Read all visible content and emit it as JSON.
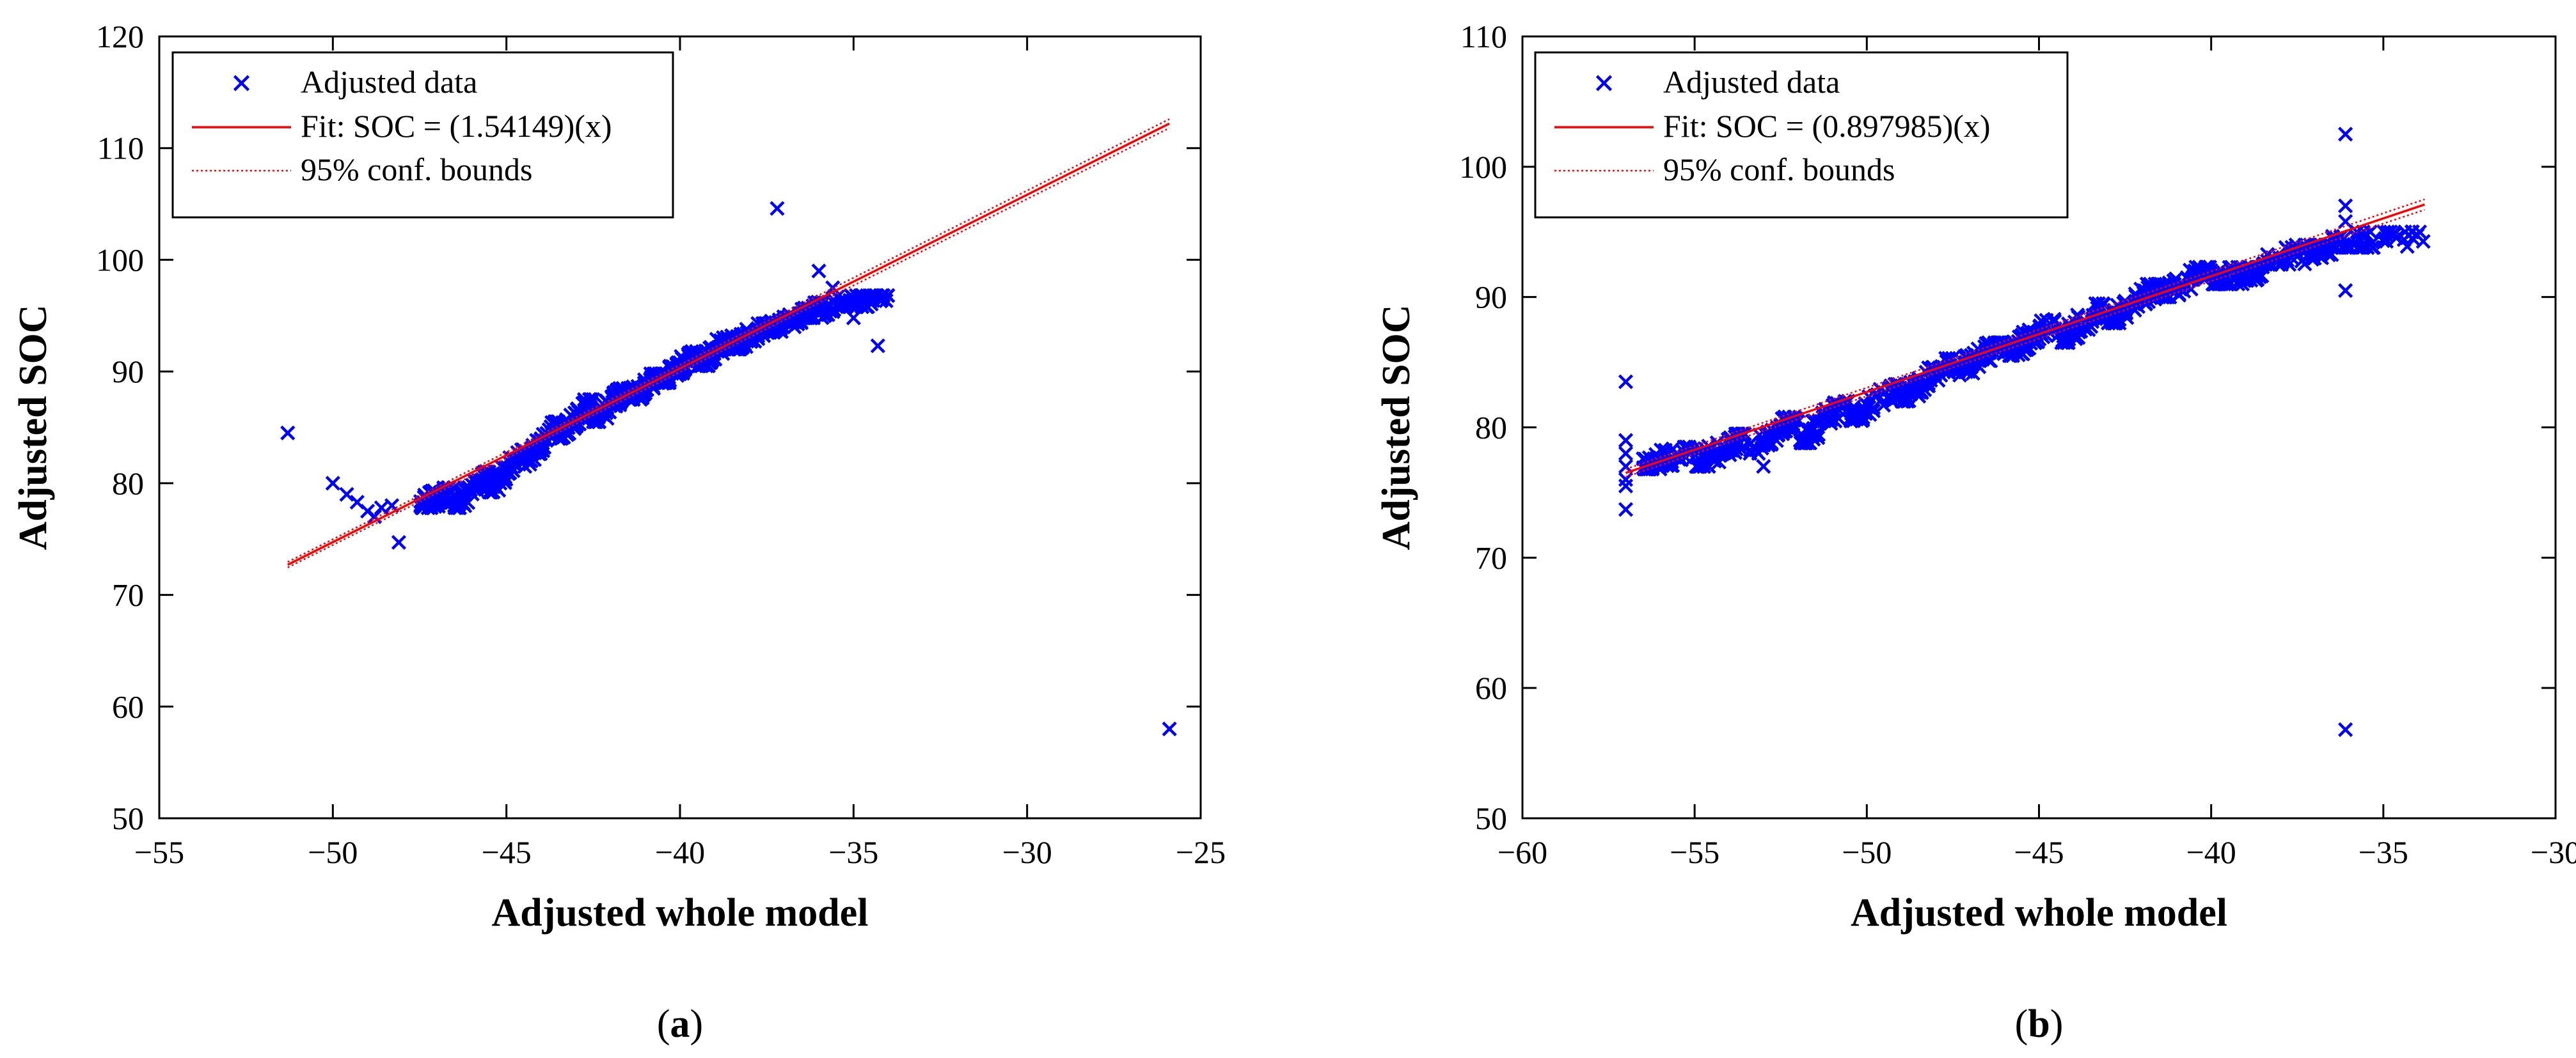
{
  "chart_data": [
    {
      "type": "scatter",
      "panel_label": "a",
      "xlabel": "Adjusted whole model",
      "ylabel": "Adjusted SOC",
      "xlim": [
        -55,
        -25
      ],
      "ylim": [
        50,
        120
      ],
      "xticks": [
        -55,
        -50,
        -45,
        -40,
        -35,
        -30,
        -25
      ],
      "yticks": [
        50,
        60,
        70,
        80,
        90,
        100,
        110,
        120
      ],
      "xtick_labels": [
        "−55",
        "−50",
        "−45",
        "−40",
        "−35",
        "−30",
        "−25"
      ],
      "ytick_labels": [
        "50",
        "60",
        "70",
        "80",
        "90",
        "100",
        "110",
        "120"
      ],
      "legend_location": "top-left",
      "legend": [
        "Adjusted data",
        "Fit: SOC = (1.54149)(x)",
        "95% conf. bounds"
      ],
      "colors": {
        "data": "#0000ff",
        "fit": "#ff0000",
        "bounds": "#ff0000",
        "axis": "#000000"
      },
      "fit_line": {
        "x": [
          -51.3,
          -25.9
        ],
        "y": [
          72.7,
          112.2
        ]
      },
      "conf_band": {
        "x": [
          -51.3,
          -25.9
        ],
        "lower": [
          72.45,
          111.8
        ],
        "upper": [
          72.95,
          112.6
        ]
      },
      "outliers": [
        {
          "x": -51.3,
          "y": 84.5
        },
        {
          "x": -50.0,
          "y": 80.0
        },
        {
          "x": -49.6,
          "y": 79.0
        },
        {
          "x": -49.3,
          "y": 78.3
        },
        {
          "x": -49.0,
          "y": 77.5
        },
        {
          "x": -48.8,
          "y": 77.0
        },
        {
          "x": -48.6,
          "y": 77.8
        },
        {
          "x": -48.3,
          "y": 78.0
        },
        {
          "x": -48.1,
          "y": 74.7
        },
        {
          "x": -37.2,
          "y": 104.6
        },
        {
          "x": -36.0,
          "y": 99.0
        },
        {
          "x": -35.6,
          "y": 97.5
        },
        {
          "x": -35.0,
          "y": 94.8
        },
        {
          "x": -34.3,
          "y": 92.3
        },
        {
          "x": -25.9,
          "y": 58.0
        }
      ],
      "bands": [
        {
          "x_range": [
            -47.5,
            -46.5
          ],
          "y_range": [
            77.8,
            79.6
          ]
        },
        {
          "x_range": [
            -46.5,
            -45.5
          ],
          "y_range": [
            77.8,
            81.0
          ]
        },
        {
          "x_range": [
            -45.5,
            -44.5
          ],
          "y_range": [
            79.2,
            83.0
          ]
        },
        {
          "x_range": [
            -44.5,
            -43.5
          ],
          "y_range": [
            81.5,
            85.5
          ]
        },
        {
          "x_range": [
            -43.5,
            -42.5
          ],
          "y_range": [
            84.0,
            87.5
          ]
        },
        {
          "x_range": [
            -42.5,
            -41.5
          ],
          "y_range": [
            85.5,
            88.5
          ]
        },
        {
          "x_range": [
            -41.5,
            -40.5
          ],
          "y_range": [
            87.5,
            89.8
          ]
        },
        {
          "x_range": [
            -40.5,
            -39.5
          ],
          "y_range": [
            89.0,
            91.8
          ]
        },
        {
          "x_range": [
            -39.5,
            -38.5
          ],
          "y_range": [
            90.5,
            93.2
          ]
        },
        {
          "x_range": [
            -38.5,
            -37.5
          ],
          "y_range": [
            92.0,
            94.3
          ]
        },
        {
          "x_range": [
            -37.5,
            -36.5
          ],
          "y_range": [
            93.5,
            95.2
          ]
        },
        {
          "x_range": [
            -36.5,
            -35.5
          ],
          "y_range": [
            94.8,
            96.3
          ]
        },
        {
          "x_range": [
            -35.5,
            -34.0
          ],
          "y_range": [
            95.8,
            96.8
          ]
        }
      ]
    },
    {
      "type": "scatter",
      "panel_label": "b",
      "xlabel": "Adjusted whole model",
      "ylabel": "Adjusted SOC",
      "xlim": [
        -60,
        -30
      ],
      "ylim": [
        50,
        110
      ],
      "xticks": [
        -60,
        -55,
        -50,
        -45,
        -40,
        -35,
        -30
      ],
      "yticks": [
        50,
        60,
        70,
        80,
        90,
        100,
        110
      ],
      "xtick_labels": [
        "−60",
        "−55",
        "−50",
        "−45",
        "−40",
        "−35",
        "−30"
      ],
      "ytick_labels": [
        "50",
        "60",
        "70",
        "80",
        "90",
        "100",
        "110"
      ],
      "legend_location": "top-left",
      "legend": [
        "Adjusted data",
        "Fit: SOC = (0.897985)(x)",
        "95% conf. bounds"
      ],
      "colors": {
        "data": "#0000ff",
        "fit": "#ff0000",
        "bounds": "#ff0000",
        "axis": "#000000"
      },
      "fit_line": {
        "x": [
          -57.0,
          -33.8
        ],
        "y": [
          76.5,
          97.1
        ]
      },
      "conf_band": {
        "x": [
          -57.0,
          -33.8
        ],
        "lower": [
          76.2,
          96.7
        ],
        "upper": [
          76.8,
          97.5
        ]
      },
      "outliers": [
        {
          "x": -57.0,
          "y": 83.5
        },
        {
          "x": -57.0,
          "y": 79.0
        },
        {
          "x": -57.0,
          "y": 78.0
        },
        {
          "x": -57.0,
          "y": 77.0
        },
        {
          "x": -57.0,
          "y": 76.0
        },
        {
          "x": -57.0,
          "y": 75.5
        },
        {
          "x": -57.0,
          "y": 73.7
        },
        {
          "x": -56.3,
          "y": 76.8
        },
        {
          "x": -53.0,
          "y": 77.0
        },
        {
          "x": -36.1,
          "y": 102.5
        },
        {
          "x": -36.1,
          "y": 97.0
        },
        {
          "x": -36.1,
          "y": 95.8
        },
        {
          "x": -36.1,
          "y": 90.5
        },
        {
          "x": -36.1,
          "y": 56.8
        }
      ],
      "bands": [
        {
          "x_range": [
            -56.5,
            -55.0
          ],
          "y_range": [
            76.8,
            78.5
          ]
        },
        {
          "x_range": [
            -55.0,
            -53.5
          ],
          "y_range": [
            77.0,
            79.5
          ]
        },
        {
          "x_range": [
            -53.5,
            -52.0
          ],
          "y_range": [
            78.0,
            80.8
          ]
        },
        {
          "x_range": [
            -52.0,
            -50.5
          ],
          "y_range": [
            78.8,
            82.0
          ]
        },
        {
          "x_range": [
            -50.5,
            -49.0
          ],
          "y_range": [
            80.5,
            83.3
          ]
        },
        {
          "x_range": [
            -49.0,
            -47.5
          ],
          "y_range": [
            82.0,
            85.3
          ]
        },
        {
          "x_range": [
            -47.5,
            -46.0
          ],
          "y_range": [
            84.0,
            86.5
          ]
        },
        {
          "x_range": [
            -46.0,
            -44.5
          ],
          "y_range": [
            85.5,
            88.3
          ]
        },
        {
          "x_range": [
            -44.5,
            -43.0
          ],
          "y_range": [
            86.5,
            89.5
          ]
        },
        {
          "x_range": [
            -43.0,
            -41.5
          ],
          "y_range": [
            88.0,
            91.0
          ]
        },
        {
          "x_range": [
            -41.5,
            -40.0
          ],
          "y_range": [
            90.0,
            92.3
          ]
        },
        {
          "x_range": [
            -40.0,
            -38.5
          ],
          "y_range": [
            91.0,
            92.3
          ]
        },
        {
          "x_range": [
            -38.5,
            -36.5
          ],
          "y_range": [
            92.5,
            94.0
          ]
        },
        {
          "x_range": [
            -36.5,
            -33.8
          ],
          "y_range": [
            93.8,
            95.0
          ]
        }
      ]
    }
  ]
}
